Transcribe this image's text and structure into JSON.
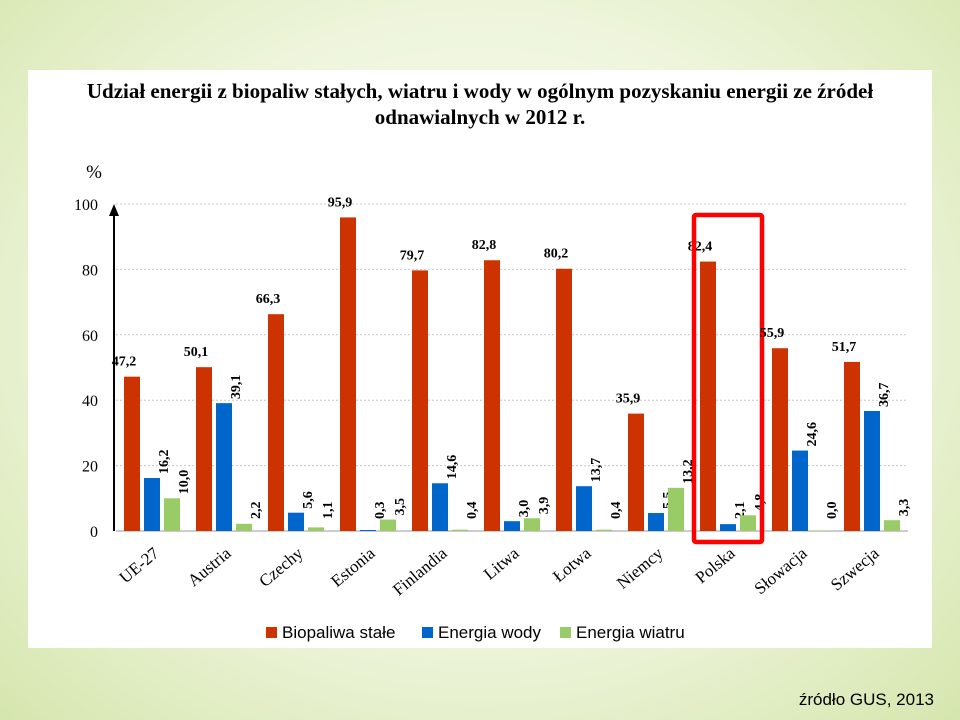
{
  "chart_data": {
    "type": "bar",
    "title": "Udział energii z biopaliw stałych, wiatru i wody w ogólnym pozyskaniu energii ze źródeł odnawialnych w 2012 r.",
    "ylabel": "%",
    "ylim": [
      0,
      100
    ],
    "yticks": [
      "0",
      "20",
      "40",
      "60",
      "80",
      "100"
    ],
    "grid": true,
    "legend_position": "bottom",
    "categories": [
      "UE-27",
      "Austria",
      "Czechy",
      "Estonia",
      "Finlandia",
      "Litwa",
      "Łotwa",
      "Niemcy",
      "Polska",
      "Słowacja",
      "Szwecja"
    ],
    "series": [
      {
        "name": "Biopaliwa stałe",
        "color": "#cc3300",
        "values": [
          47.2,
          50.1,
          66.3,
          95.9,
          79.7,
          82.8,
          80.2,
          35.9,
          82.4,
          55.9,
          51.7
        ],
        "labels": [
          "47,2",
          "50,1",
          "66,3",
          "95,9",
          "79,7",
          "82,8",
          "80,2",
          "35,9",
          "82,4",
          "55,9",
          "51,7"
        ]
      },
      {
        "name": "Energia wody",
        "color": "#0066cc",
        "values": [
          16.2,
          39.1,
          5.6,
          0.3,
          14.6,
          3.0,
          13.7,
          5.5,
          2.1,
          24.6,
          36.7
        ],
        "labels": [
          "16,2",
          "39,1",
          "5,6",
          "0,3",
          "14,6",
          "3,0",
          "13,7",
          "5,5",
          "2,1",
          "24,6",
          "36,7"
        ]
      },
      {
        "name": "Energia wiatru",
        "color": "#99cc66",
        "values": [
          10.0,
          2.2,
          1.1,
          3.5,
          0.4,
          3.9,
          0.4,
          13.2,
          4.8,
          0.0,
          3.3
        ],
        "labels": [
          "10,0",
          "2,2",
          "1,1",
          "3,5",
          "0,4",
          "3,9",
          "0,4",
          "13,2",
          "4,8",
          "0,0",
          "3,3"
        ]
      }
    ],
    "highlight": {
      "category": "Polska",
      "color": "#ff0000"
    }
  },
  "source": "źródło GUS, 2013"
}
